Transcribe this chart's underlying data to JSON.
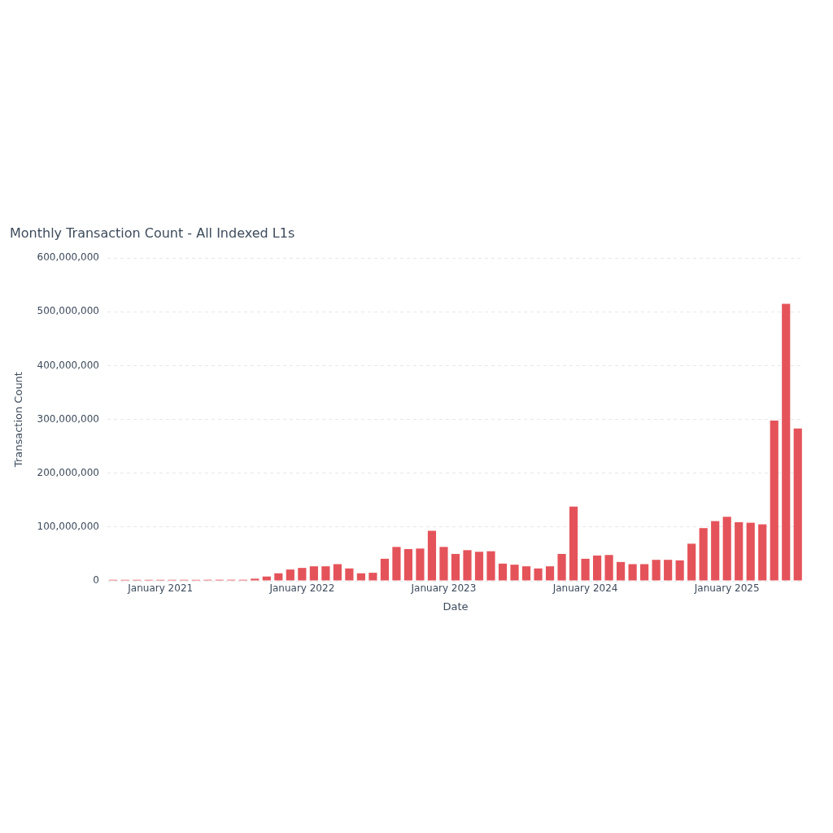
{
  "chart_data": {
    "type": "bar",
    "title": "Monthly Transaction Count - All Indexed L1s",
    "xlabel": "Date",
    "ylabel": "Transaction Count",
    "categories": [
      null,
      null,
      null,
      null,
      "January 2021",
      null,
      null,
      null,
      null,
      null,
      null,
      null,
      null,
      null,
      null,
      null,
      "January 2022",
      null,
      null,
      null,
      null,
      null,
      null,
      null,
      null,
      null,
      null,
      null,
      "January 2023",
      null,
      null,
      null,
      null,
      null,
      null,
      null,
      null,
      null,
      null,
      null,
      "January 2024",
      null,
      null,
      null,
      null,
      null,
      null,
      null,
      null,
      null,
      null,
      null,
      "January 2025",
      null,
      null,
      null,
      null,
      null,
      null
    ],
    "values": [
      2000000,
      2000000,
      2000000,
      2000000,
      2000000,
      2000000,
      2000000,
      2000000,
      2000000,
      2000000,
      2000000,
      2000000,
      4000000,
      8000000,
      14000000,
      21000000,
      24000000,
      27000000,
      27000000,
      31000000,
      23000000,
      14000000,
      15000000,
      41000000,
      63000000,
      59000000,
      60000000,
      93000000,
      63000000,
      50000000,
      57000000,
      54000000,
      55000000,
      32000000,
      30000000,
      27000000,
      23000000,
      27000000,
      50000000,
      138000000,
      41000000,
      47000000,
      48000000,
      35000000,
      31000000,
      31000000,
      39000000,
      39000000,
      38000000,
      69000000,
      98000000,
      111000000,
      119000000,
      109000000,
      108000000,
      105000000,
      298000000,
      515000000,
      283000000
    ],
    "color": "#e5535a",
    "ylim": [
      0,
      600000000
    ],
    "yticks": [
      {
        "value": 0,
        "label": "0"
      },
      {
        "value": 100000000,
        "label": "100,000,000"
      },
      {
        "value": 200000000,
        "label": "200,000,000"
      },
      {
        "value": 300000000,
        "label": "300,000,000"
      },
      {
        "value": 400000000,
        "label": "400,000,000"
      },
      {
        "value": 500000000,
        "label": "500,000,000"
      },
      {
        "value": 600000000,
        "label": "600,000,000"
      }
    ],
    "grid": "y"
  }
}
